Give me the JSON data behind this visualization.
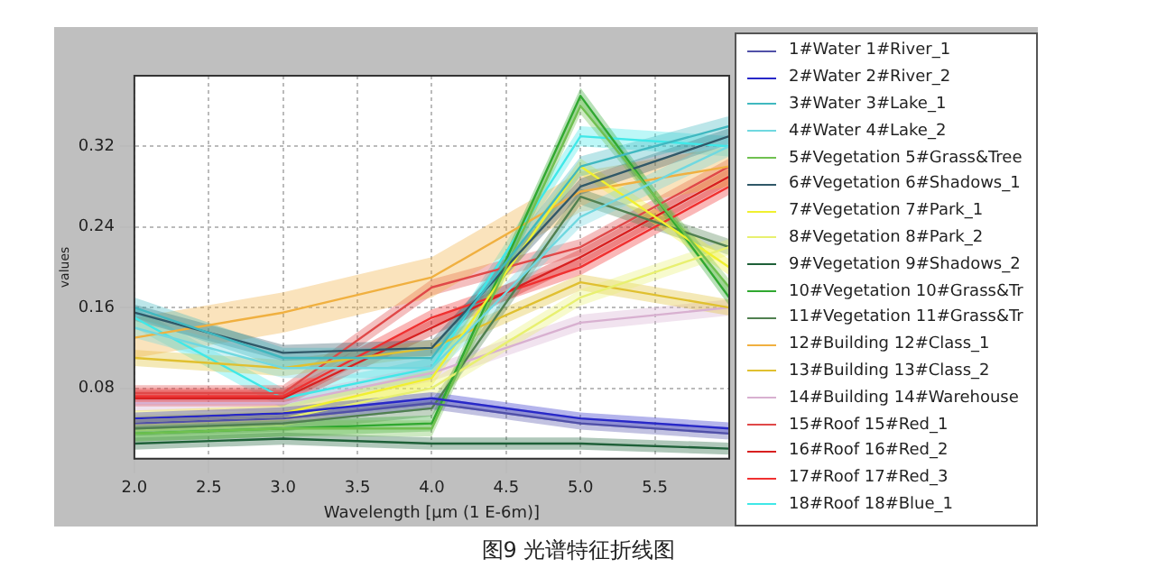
{
  "chart_data": {
    "type": "line",
    "title": "图9 光谱特征折线图",
    "xlabel": "Wavelength [μm (1 E-6m)]",
    "ylabel": "values",
    "x": [
      2,
      3,
      4,
      5,
      6
    ],
    "xlim": [
      2,
      6
    ],
    "xticks": [
      {
        "value": 2,
        "label": "2.0"
      },
      {
        "value": 2.5,
        "label": "2.5"
      },
      {
        "value": 3,
        "label": "3.0"
      },
      {
        "value": 3.5,
        "label": "3.5"
      },
      {
        "value": 4,
        "label": "4.0"
      },
      {
        "value": 4.5,
        "label": "4.5"
      },
      {
        "value": 5,
        "label": "5.0"
      },
      {
        "value": 5.5,
        "label": "5.5"
      }
    ],
    "ylim": [
      0.01,
      0.39
    ],
    "yticks": [
      0.08,
      0.16,
      0.24,
      0.32
    ],
    "grid": true,
    "legend": "right",
    "series": [
      {
        "name": "1#Water 1#River_1",
        "color": "#5050a8",
        "values": [
          0.045,
          0.05,
          0.065,
          0.045,
          0.035
        ],
        "lower": [
          0.039,
          0.044,
          0.059,
          0.039,
          0.029
        ],
        "upper": [
          0.051,
          0.056,
          0.071,
          0.051,
          0.041
        ]
      },
      {
        "name": "2#Water 2#River_2",
        "color": "#2828c8",
        "values": [
          0.05,
          0.055,
          0.07,
          0.05,
          0.04
        ],
        "lower": [
          0.044,
          0.049,
          0.064,
          0.044,
          0.034
        ],
        "upper": [
          0.056,
          0.061,
          0.076,
          0.056,
          0.046
        ]
      },
      {
        "name": "3#Water 3#Lake_1",
        "color": "#40b8c0",
        "values": [
          0.16,
          0.11,
          0.11,
          0.3,
          0.34
        ],
        "lower": [
          0.15,
          0.1,
          0.1,
          0.29,
          0.33
        ],
        "upper": [
          0.17,
          0.12,
          0.12,
          0.31,
          0.35
        ]
      },
      {
        "name": "4#Water 4#Lake_2",
        "color": "#70d8e0",
        "values": [
          0.14,
          0.1,
          0.1,
          0.25,
          0.32
        ],
        "lower": [
          0.13,
          0.09,
          0.09,
          0.24,
          0.31
        ],
        "upper": [
          0.15,
          0.11,
          0.11,
          0.26,
          0.33
        ]
      },
      {
        "name": "5#Vegetation 5#Grass&Tree",
        "color": "#70c050",
        "values": [
          0.035,
          0.04,
          0.04,
          0.36,
          0.18
        ],
        "lower": [
          0.027,
          0.032,
          0.032,
          0.352,
          0.172
        ],
        "upper": [
          0.043,
          0.048,
          0.048,
          0.368,
          0.188
        ]
      },
      {
        "name": "6#Vegetation 6#Shadows_1",
        "color": "#305868",
        "values": [
          0.155,
          0.115,
          0.12,
          0.28,
          0.33
        ],
        "lower": [
          0.147,
          0.107,
          0.112,
          0.272,
          0.322
        ],
        "upper": [
          0.163,
          0.123,
          0.128,
          0.288,
          0.338
        ]
      },
      {
        "name": "7#Vegetation 7#Park_1",
        "color": "#f0f030",
        "values": [
          0.05,
          0.055,
          0.09,
          0.3,
          0.2
        ],
        "lower": [
          0.042,
          0.047,
          0.082,
          0.292,
          0.192
        ],
        "upper": [
          0.058,
          0.063,
          0.098,
          0.308,
          0.208
        ]
      },
      {
        "name": "8#Vegetation 8#Park_2",
        "color": "#e8f070",
        "values": [
          0.045,
          0.05,
          0.08,
          0.17,
          0.22
        ],
        "lower": [
          0.037,
          0.042,
          0.072,
          0.162,
          0.212
        ],
        "upper": [
          0.053,
          0.058,
          0.088,
          0.178,
          0.228
        ]
      },
      {
        "name": "9#Vegetation 9#Shadows_2",
        "color": "#1e6038",
        "values": [
          0.025,
          0.03,
          0.025,
          0.025,
          0.02
        ],
        "lower": [
          0.019,
          0.024,
          0.019,
          0.019,
          0.014
        ],
        "upper": [
          0.031,
          0.036,
          0.031,
          0.031,
          0.026
        ]
      },
      {
        "name": "10#Vegetation 10#Grass&Tr",
        "color": "#30a830",
        "values": [
          0.035,
          0.04,
          0.045,
          0.37,
          0.17
        ],
        "lower": [
          0.027,
          0.032,
          0.037,
          0.362,
          0.162
        ],
        "upper": [
          0.043,
          0.048,
          0.053,
          0.378,
          0.178
        ]
      },
      {
        "name": "11#Vegetation 11#Grass&Tr",
        "color": "#508050",
        "values": [
          0.04,
          0.045,
          0.06,
          0.27,
          0.22
        ],
        "lower": [
          0.032,
          0.037,
          0.052,
          0.262,
          0.212
        ],
        "upper": [
          0.048,
          0.053,
          0.068,
          0.278,
          0.228
        ]
      },
      {
        "name": "12#Building 12#Class_1",
        "color": "#f0b040",
        "values": [
          0.13,
          0.155,
          0.19,
          0.275,
          0.3
        ],
        "lower": [
          0.11,
          0.135,
          0.17,
          0.255,
          0.28
        ],
        "upper": [
          0.15,
          0.175,
          0.21,
          0.295,
          0.32
        ]
      },
      {
        "name": "13#Building 13#Class_2",
        "color": "#e0c030",
        "values": [
          0.11,
          0.1,
          0.12,
          0.185,
          0.16
        ],
        "lower": [
          0.102,
          0.092,
          0.112,
          0.177,
          0.152
        ],
        "upper": [
          0.118,
          0.108,
          0.128,
          0.193,
          0.168
        ]
      },
      {
        "name": "14#Building 14#Warehouse",
        "color": "#d8b0d0",
        "values": [
          0.065,
          0.065,
          0.095,
          0.145,
          0.16
        ],
        "lower": [
          0.057,
          0.057,
          0.087,
          0.137,
          0.152
        ],
        "upper": [
          0.073,
          0.073,
          0.103,
          0.153,
          0.168
        ]
      },
      {
        "name": "15#Roof 15#Red_1",
        "color": "#e04848",
        "values": [
          0.075,
          0.075,
          0.18,
          0.22,
          0.3
        ],
        "lower": [
          0.067,
          0.067,
          0.172,
          0.212,
          0.292
        ],
        "upper": [
          0.083,
          0.083,
          0.188,
          0.228,
          0.308
        ]
      },
      {
        "name": "16#Roof 16#Red_2",
        "color": "#d82020",
        "values": [
          0.07,
          0.07,
          0.14,
          0.21,
          0.29
        ],
        "lower": [
          0.062,
          0.062,
          0.132,
          0.202,
          0.282
        ],
        "upper": [
          0.078,
          0.078,
          0.148,
          0.218,
          0.298
        ]
      },
      {
        "name": "17#Roof 17#Red_3",
        "color": "#f03030",
        "values": [
          0.072,
          0.072,
          0.15,
          0.2,
          0.28
        ],
        "lower": [
          0.064,
          0.064,
          0.142,
          0.192,
          0.272
        ],
        "upper": [
          0.08,
          0.08,
          0.158,
          0.208,
          0.288
        ]
      },
      {
        "name": "18#Roof 18#Blue_1",
        "color": "#40e8e8",
        "values": [
          0.15,
          0.07,
          0.1,
          0.33,
          0.32
        ],
        "lower": [
          0.14,
          0.06,
          0.09,
          0.32,
          0.31
        ],
        "upper": [
          0.16,
          0.08,
          0.11,
          0.34,
          0.33
        ]
      }
    ]
  }
}
